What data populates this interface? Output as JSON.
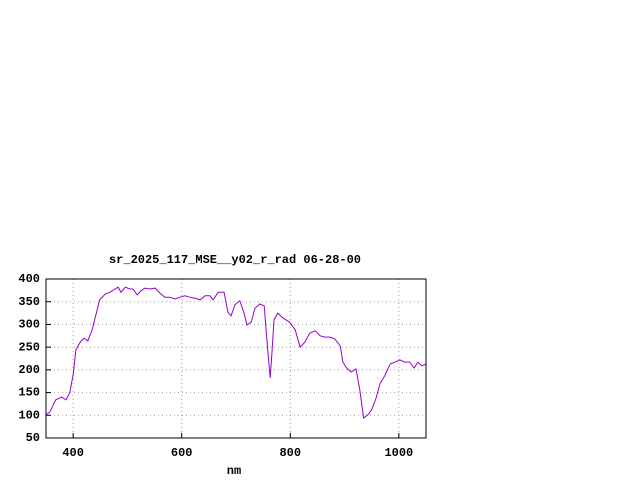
{
  "chart_data": {
    "type": "line",
    "title": "sr_2025_117_MSE__y02_r_rad 06-28-00",
    "x_label": "nm",
    "x": [
      350,
      357,
      368,
      379,
      387,
      394,
      400,
      405,
      413,
      420,
      427,
      435,
      442,
      449,
      459,
      468,
      477,
      483,
      488,
      496,
      505,
      510,
      518,
      525,
      532,
      542,
      551,
      560,
      569,
      578,
      588,
      597,
      606,
      615,
      624,
      634,
      643,
      652,
      658,
      667,
      678,
      685,
      691,
      698,
      707,
      715,
      720,
      728,
      735,
      744,
      752,
      757,
      763,
      766,
      770,
      777,
      787,
      799,
      809,
      818,
      827,
      836,
      846,
      855,
      864,
      873,
      882,
      892,
      897,
      904,
      912,
      921,
      928,
      935,
      943,
      950,
      958,
      965,
      974,
      984,
      993,
      1002,
      1011,
      1020,
      1028,
      1035,
      1042,
      1050
    ],
    "series": [
      {
        "color": "#9400d3",
        "values": [
          101,
          107,
          134,
          140,
          134,
          151,
          189,
          244,
          261,
          270,
          264,
          288,
          321,
          354,
          367,
          371,
          378,
          382,
          371,
          382,
          378,
          378,
          365,
          374,
          380,
          378,
          380,
          369,
          360,
          360,
          356,
          360,
          363,
          360,
          358,
          354,
          363,
          363,
          354,
          371,
          371,
          327,
          319,
          343,
          352,
          325,
          299,
          305,
          336,
          345,
          341,
          266,
          182,
          233,
          310,
          325,
          314,
          305,
          288,
          250,
          261,
          281,
          286,
          275,
          272,
          272,
          268,
          253,
          217,
          204,
          195,
          202,
          156,
          94,
          101,
          112,
          138,
          169,
          187,
          213,
          217,
          222,
          217,
          217,
          204,
          217,
          209,
          213
        ]
      }
    ],
    "xlim": [
      350,
      1050
    ],
    "ylim": [
      50,
      400
    ],
    "xticks": [
      400,
      600,
      800,
      1000
    ],
    "yticks": [
      50,
      100,
      150,
      200,
      250,
      300,
      350,
      400
    ],
    "grid": true
  }
}
